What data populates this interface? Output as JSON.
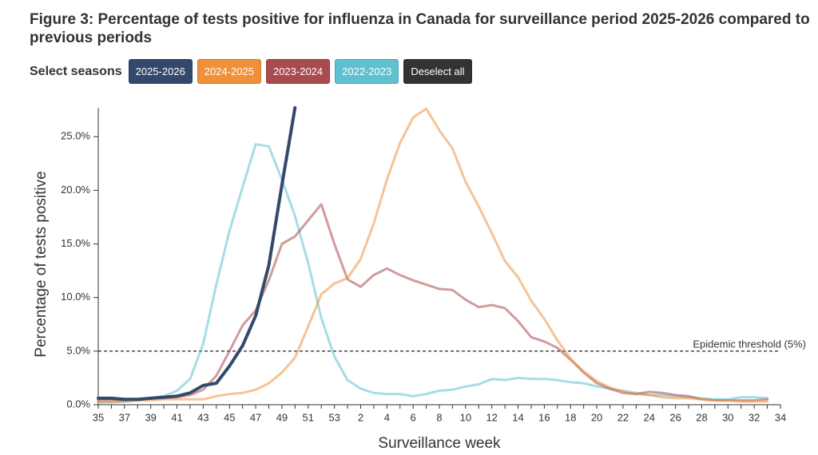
{
  "chart_data": {
    "type": "line",
    "title": "Figure 3: Percentage of tests positive for influenza in Canada for surveillance period 2025-2026 compared to previous periods",
    "legend_label": "Select seasons",
    "deselect_label": "Deselect all",
    "x_label": "Surveillance week",
    "y_label": "Percentage of tests positive",
    "categories": [
      35,
      null,
      37,
      null,
      39,
      null,
      41,
      null,
      43,
      null,
      45,
      null,
      47,
      null,
      49,
      null,
      51,
      null,
      53,
      null,
      2,
      null,
      4,
      null,
      6,
      null,
      8,
      null,
      10,
      null,
      12,
      null,
      14,
      null,
      16,
      null,
      18,
      null,
      20,
      null,
      22,
      null,
      24,
      null,
      26,
      null,
      28,
      null,
      30,
      null,
      32,
      null,
      34
    ],
    "ylim": [
      0,
      27.7
    ],
    "yticks": [
      {
        "value": 0,
        "label": "0.0%"
      },
      {
        "value": 5,
        "label": "5.0%"
      },
      {
        "value": 10,
        "label": "10.0%"
      },
      {
        "value": 15,
        "label": "15.0%"
      },
      {
        "value": 20,
        "label": "20.0%"
      },
      {
        "value": 25,
        "label": "25.0%"
      }
    ],
    "threshold": {
      "value": 5,
      "label": "Epidemic threshold (5%)"
    },
    "series": [
      {
        "name": "2025-2026",
        "color": "#34486b",
        "values": [
          0.6,
          0.6,
          0.5,
          0.5,
          0.6,
          0.7,
          0.8,
          1.1,
          1.8,
          2.0,
          3.6,
          5.5,
          8.3,
          13.0,
          20.5,
          27.7,
          null,
          null,
          null,
          null,
          null,
          null,
          null,
          null,
          null,
          null,
          null,
          null,
          null,
          null,
          null,
          null,
          null,
          null,
          null,
          null,
          null,
          null,
          null,
          null,
          null,
          null,
          null,
          null,
          null,
          null,
          null,
          null,
          null,
          null,
          null,
          null,
          null
        ]
      },
      {
        "name": "2024-2025",
        "color": "#f0913a",
        "values": [
          0.3,
          0.3,
          0.3,
          0.4,
          0.4,
          0.5,
          0.5,
          0.5,
          0.5,
          0.8,
          1.0,
          1.1,
          1.4,
          2.0,
          3.0,
          4.4,
          7.3,
          10.3,
          11.3,
          11.8,
          13.6,
          16.9,
          21.0,
          24.4,
          26.8,
          27.6,
          25.6,
          23.9,
          20.8,
          18.5,
          16.0,
          13.4,
          11.9,
          9.7,
          8.0,
          6.0,
          4.3,
          3.1,
          2.2,
          1.6,
          1.2,
          1.0,
          0.9,
          0.7,
          0.6,
          0.6,
          0.5,
          0.4,
          0.4,
          0.3,
          0.3,
          0.3,
          null
        ]
      },
      {
        "name": "2023-2024",
        "color": "#a94a4e",
        "values": [
          0.4,
          0.4,
          0.4,
          0.5,
          0.6,
          0.6,
          0.7,
          0.9,
          1.4,
          2.7,
          5.0,
          7.4,
          8.8,
          11.6,
          15.0,
          15.7,
          17.2,
          18.7,
          15.0,
          11.7,
          11.0,
          12.1,
          12.7,
          12.1,
          11.6,
          11.2,
          10.8,
          10.7,
          9.8,
          9.1,
          9.3,
          9.0,
          7.8,
          6.3,
          5.9,
          5.3,
          4.2,
          3.0,
          2.0,
          1.5,
          1.1,
          1.0,
          1.2,
          1.1,
          0.9,
          0.8,
          0.5,
          0.4,
          0.4,
          0.4,
          0.4,
          0.5,
          null
        ]
      },
      {
        "name": "2022-2023",
        "color": "#5fc0d0",
        "values": [
          0.2,
          0.2,
          0.3,
          0.4,
          0.6,
          0.8,
          1.3,
          2.4,
          5.7,
          11.2,
          16.2,
          20.3,
          24.3,
          24.1,
          21.0,
          17.6,
          13.2,
          8.1,
          4.5,
          2.3,
          1.5,
          1.1,
          1.0,
          1.0,
          0.8,
          1.0,
          1.3,
          1.4,
          1.7,
          1.9,
          2.4,
          2.3,
          2.5,
          2.4,
          2.4,
          2.3,
          2.1,
          2.0,
          1.7,
          1.5,
          1.3,
          1.1,
          0.9,
          0.9,
          0.8,
          0.7,
          0.6,
          0.5,
          0.5,
          0.7,
          0.7,
          0.6,
          null
        ]
      }
    ]
  }
}
